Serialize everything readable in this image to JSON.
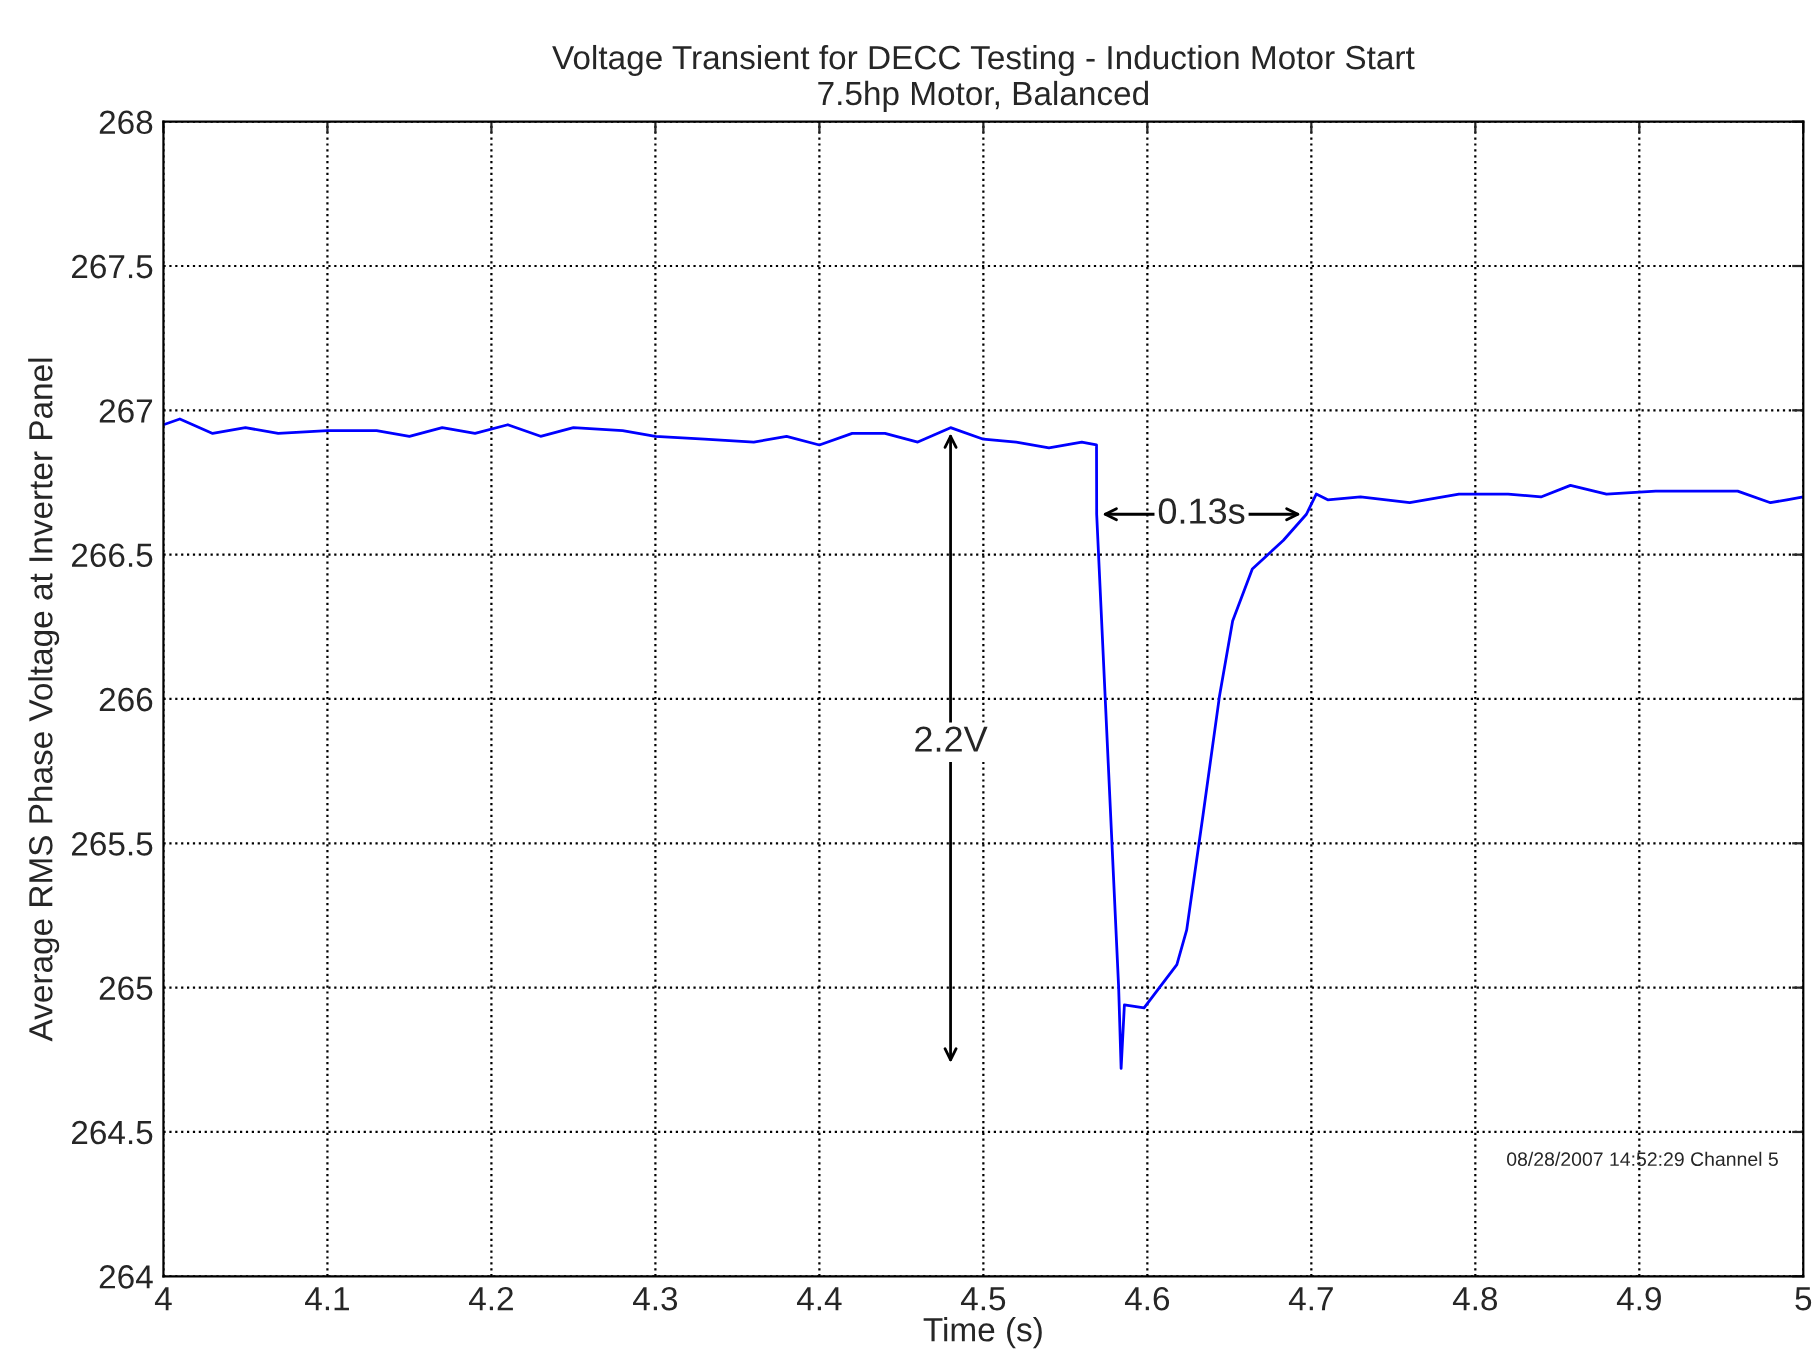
{
  "chart_data": {
    "type": "line",
    "title": "Voltage Transient for DECC Testing - Induction Motor Start",
    "subtitle": "7.5hp Motor, Balanced",
    "xlabel": "Time (s)",
    "ylabel": "Average RMS Phase Voltage at Inverter Panel",
    "x": [
      4.0,
      4.01,
      4.03,
      4.05,
      4.07,
      4.1,
      4.13,
      4.15,
      4.17,
      4.19,
      4.21,
      4.23,
      4.25,
      4.28,
      4.3,
      4.33,
      4.36,
      4.38,
      4.4,
      4.42,
      4.44,
      4.46,
      4.48,
      4.5,
      4.52,
      4.54,
      4.56,
      4.569,
      4.5691,
      4.5825,
      4.584,
      4.586,
      4.598,
      4.618,
      4.624,
      4.634,
      4.644,
      4.652,
      4.664,
      4.683,
      4.697,
      4.703,
      4.71,
      4.73,
      4.76,
      4.79,
      4.82,
      4.84,
      4.858,
      4.88,
      4.91,
      4.94,
      4.96,
      4.98,
      4.99,
      5.0
    ],
    "series": [
      {
        "color": "#0000ff",
        "values": [
          266.95,
          266.97,
          266.92,
          266.94,
          266.92,
          266.93,
          266.93,
          266.91,
          266.94,
          266.92,
          266.95,
          266.91,
          266.94,
          266.93,
          266.91,
          266.9,
          266.89,
          266.91,
          266.88,
          266.92,
          266.92,
          266.89,
          266.94,
          266.9,
          266.89,
          266.87,
          266.89,
          266.88,
          266.64,
          265.0,
          264.72,
          264.94,
          264.93,
          265.08,
          265.2,
          265.6,
          266.01,
          266.27,
          266.45,
          266.55,
          266.64,
          266.71,
          266.69,
          266.7,
          266.68,
          266.71,
          266.71,
          266.7,
          266.74,
          266.71,
          266.72,
          266.72,
          266.72,
          266.68,
          266.69,
          266.7
        ]
      }
    ],
    "xlim": [
      4,
      5
    ],
    "ylim": [
      264,
      268
    ],
    "xticks": [
      4,
      4.1,
      4.2,
      4.3,
      4.4,
      4.5,
      4.6,
      4.7,
      4.8,
      4.9,
      5
    ],
    "yticks": [
      264,
      264.5,
      265,
      265.5,
      266,
      266.5,
      267,
      267.5,
      268
    ],
    "grid": true,
    "marker": "none",
    "line_style": "solid",
    "annotations": [
      {
        "text": "2.2V",
        "x": 4.48,
        "y": 265.85
      },
      "0.13s",
      "08/28/2007 14:52:29 Channel 5"
    ]
  }
}
